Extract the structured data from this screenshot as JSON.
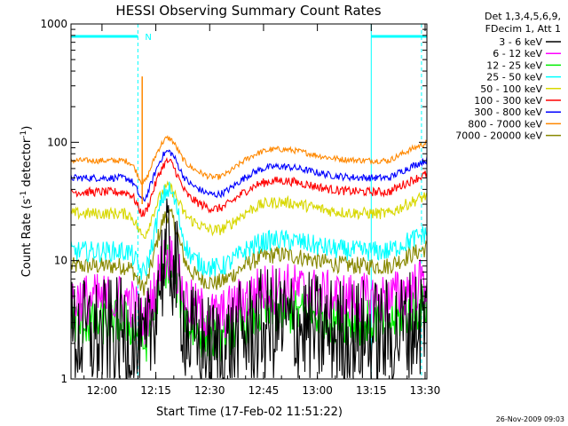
{
  "chart_data": {
    "type": "line",
    "title": "HESSI Observing Summary Count Rates",
    "xlabel": "Start Time (17-Feb-02 11:51:22)",
    "ylabel_main": "Count Rate (s",
    "ylabel_sup1": "-1",
    "ylabel_mid": " detector",
    "ylabel_sup2": "-1",
    "ylabel_end": ")",
    "y_scale": "log",
    "ylim": [
      1,
      1000
    ],
    "x_start_min": 711.37,
    "x_end_min": 810.5,
    "x_ticks": [
      "12:00",
      "12:15",
      "12:30",
      "12:45",
      "13:00",
      "13:15",
      "13:30"
    ],
    "y_ticks": [
      "1",
      "10",
      "100",
      "1000"
    ],
    "legend_header": [
      "Det 1,3,4,5,6,9,",
      "FDecim 1, Att 1"
    ],
    "legend_position": "top-right outside",
    "footer": "26-Nov-2009 09:03",
    "attenuator_label": "N",
    "night_intervals": [
      [
        711.37,
        730.0
      ],
      [
        795.0,
        810.5
      ]
    ],
    "series": [
      {
        "name": "3 - 6 keV",
        "color": "#000000",
        "baseline": 2.3,
        "peak": 11,
        "noise": 0.2
      },
      {
        "name": "6 - 12 keV",
        "color": "#ff00ff",
        "baseline": 4.7,
        "peak": 11,
        "noise": 0.09
      },
      {
        "name": "12 - 25 keV",
        "color": "#00ee00",
        "baseline": 3.0,
        "peak": 9.5,
        "noise": 0.08
      },
      {
        "name": "25 - 50 keV",
        "color": "#00ffff",
        "baseline": 12,
        "peak": 40,
        "noise": 0.035
      },
      {
        "name": "50 - 100 keV",
        "color": "#d8d800",
        "baseline": 25,
        "peak": 42,
        "noise": 0.02
      },
      {
        "name": "100 - 300 keV",
        "color": "#ff0000",
        "baseline": 38,
        "peak": 70,
        "noise": 0.015
      },
      {
        "name": "300 - 800 keV",
        "color": "#0000ff",
        "baseline": 50,
        "peak": 85,
        "noise": 0.012
      },
      {
        "name": "800 - 7000 keV",
        "color": "#ff8800",
        "baseline": 70,
        "peak": 110,
        "noise": 0.01
      },
      {
        "name": "7000 - 20000 keV",
        "color": "#888800",
        "baseline": 9,
        "peak": 25,
        "noise": 0.03
      }
    ]
  }
}
